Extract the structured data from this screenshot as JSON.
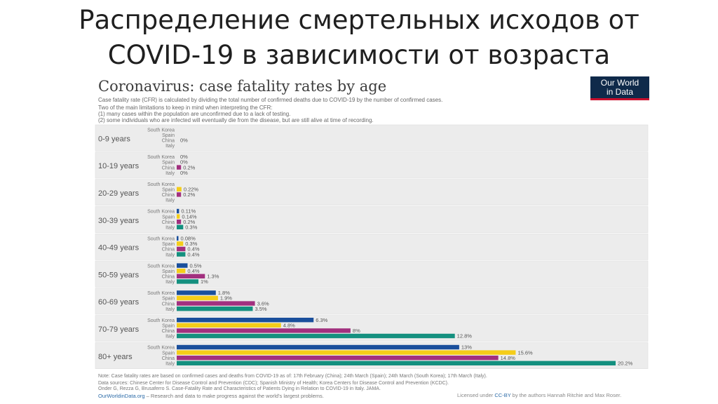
{
  "slide": {
    "title_line1": "Распределение смертельных исходов от",
    "title_line2": "COVID-19 в зависимости от возраста"
  },
  "header": {
    "subtitle": "Case fatality rate (CFR) is calculated by dividing the total number of confirmed deaths due to COVID-19 by the number of confirmed cases.",
    "limitations_intro": "Two of the main limitations to keep in mind when interpreting the CFR:",
    "limitation_1": "(1) many cases within the population are unconfirmed due to a lack of testing.",
    "limitation_2": "(2) some individuals who are infected will eventually die from the disease, but are still alive at time of recording.",
    "logo_line1": "Our World",
    "logo_line2": "in Data"
  },
  "chart_data": {
    "type": "bar",
    "title": "Coronavirus: case fatality rates by age",
    "orientation": "horizontal",
    "categories": [
      "0-9 years",
      "10-19 years",
      "20-29 years",
      "30-39 years",
      "40-49 years",
      "50-59 years",
      "60-69 years",
      "70-79 years",
      "80+ years"
    ],
    "series": [
      {
        "name": "South Korea",
        "color": "#1a4f9c",
        "values": [
          0,
          0,
          0,
          0.11,
          0.08,
          0.5,
          1.8,
          6.3,
          13
        ],
        "labels": [
          "",
          "0%",
          "",
          "0.11%",
          "0.08%",
          "0.5%",
          "1.8%",
          "6.3%",
          "13%"
        ]
      },
      {
        "name": "Spain",
        "color": "#f5cd19",
        "values": [
          0,
          0,
          0.22,
          0.14,
          0.3,
          0.4,
          1.9,
          4.8,
          15.6
        ],
        "labels": [
          "",
          "0%",
          "0.22%",
          "0.14%",
          "0.3%",
          "0.4%",
          "1.9%",
          "4.8%",
          "15.6%"
        ]
      },
      {
        "name": "China",
        "color": "#a2307f",
        "values": [
          0,
          0.2,
          0.2,
          0.2,
          0.4,
          1.3,
          3.6,
          8,
          14.8
        ],
        "labels": [
          "0%",
          "0.2%",
          "0.2%",
          "0.2%",
          "0.4%",
          "1.3%",
          "3.6%",
          "8%",
          "14.8%"
        ]
      },
      {
        "name": "Italy",
        "color": "#14907f",
        "values": [
          0,
          0,
          0,
          0.3,
          0.4,
          1,
          3.5,
          12.8,
          20.2
        ],
        "labels": [
          "",
          "0%",
          "",
          "0.3%",
          "0.4%",
          "1%",
          "3.5%",
          "12.8%",
          "20.2%"
        ]
      }
    ],
    "xlim": [
      0,
      20.2
    ],
    "grid": false
  },
  "footer": {
    "note": "Note: Case fatality rates are based on confirmed cases and deaths from COVID-19 as of: 17th February (China); 24th March (Spain); 24th March (South Korea); 17th March (Italy).",
    "sources_1": "Data sources: Chinese Center for Disease Control and Prevention (CDC); Spanish Ministry of Health; Korea Centers for Disease Control and Prevention (KCDC).",
    "sources_2": "Onder G, Rezza G, Brusaferro S. Case-Fatality Rate and Characteristics of Patients Dying in Relation to COVID-19 in Italy. JAMA.",
    "site_link": "OurWorldinData.org",
    "site_tagline": " – Research and data to make progress against the world's largest problems.",
    "license_prefix": "Licensed under ",
    "license_link": "CC-BY",
    "license_suffix": " by the authors Hannah Ritchie and Max Roser."
  }
}
